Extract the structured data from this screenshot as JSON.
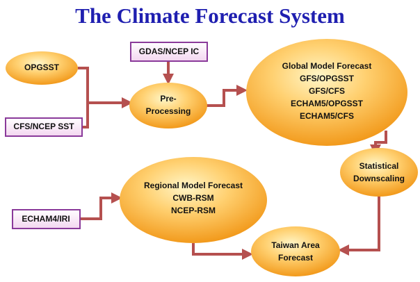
{
  "title": "The Climate Forecast System",
  "nodes": [
    {
      "lines": [
        "OPGSST"
      ]
    },
    {
      "lines": [
        "GDAS/NCEP IC"
      ]
    },
    {
      "lines": [
        "Pre-",
        "Processing"
      ]
    },
    {
      "lines": [
        "CFS/NCEP SST"
      ]
    },
    {
      "lines": [
        "Global Model Forecast",
        "GFS/OPGSST",
        "GFS/CFS",
        "ECHAM5/OPGSST",
        "ECHAM5/CFS"
      ]
    },
    {
      "lines": [
        "Statistical",
        "Downscaling"
      ]
    },
    {
      "lines": [
        "Regional Model Forecast",
        "CWB-RSM",
        "NCEP-RSM"
      ]
    },
    {
      "lines": [
        "ECHAM4/IRI"
      ]
    },
    {
      "lines": [
        "Taiwan Area",
        "Forecast"
      ]
    }
  ]
}
